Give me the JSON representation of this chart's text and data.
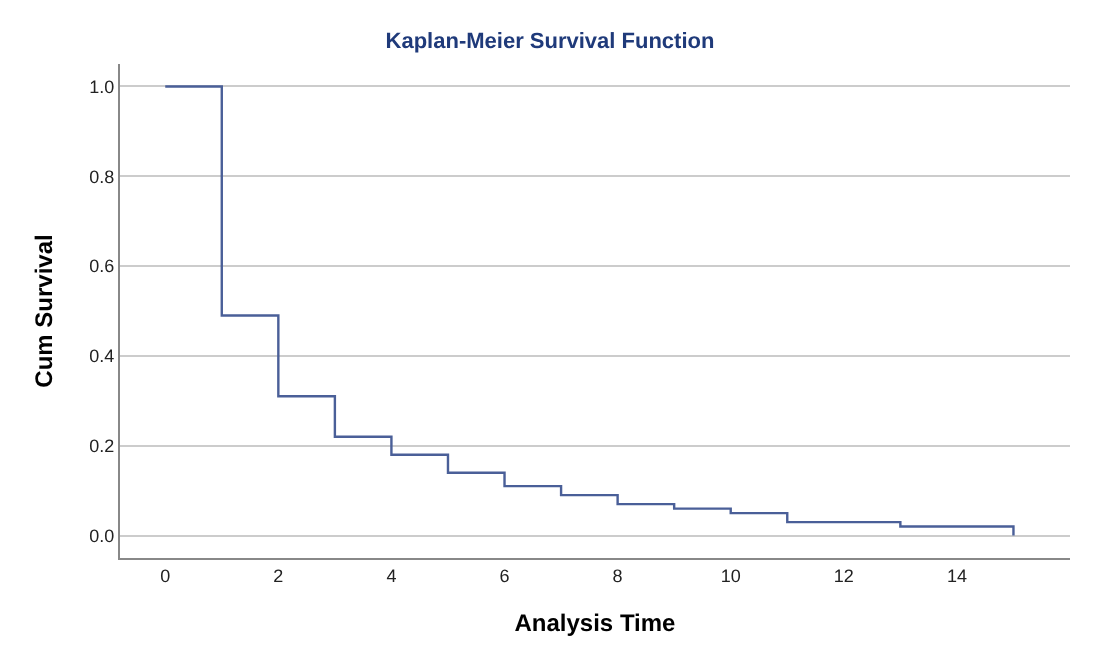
{
  "chart_data": {
    "type": "step",
    "title": "Kaplan-Meier Survival Function",
    "xlabel": "Analysis Time",
    "ylabel": "Cum Survival",
    "x": [
      0,
      1,
      2,
      3,
      4,
      5,
      6,
      7,
      8,
      9,
      10,
      11,
      12,
      13,
      14,
      15
    ],
    "series": [
      {
        "color": "#4a5f98",
        "values": [
          1.0,
          0.49,
          0.31,
          0.22,
          0.18,
          0.14,
          0.11,
          0.09,
          0.07,
          0.06,
          0.05,
          0.03,
          0.03,
          0.02,
          0.02,
          0.0
        ]
      }
    ],
    "xlim": [
      -0.8,
      16
    ],
    "xticks": [
      0,
      2,
      4,
      6,
      8,
      10,
      12,
      14
    ],
    "ylim": [
      -0.05,
      1.05
    ],
    "yticks": [
      {
        "value": 0,
        "label": "0.0"
      },
      {
        "value": 0.2,
        "label": "0.2"
      },
      {
        "value": 0.4,
        "label": "0.4"
      },
      {
        "value": 0.6,
        "label": "0.6"
      },
      {
        "value": 0.8,
        "label": "0.8"
      },
      {
        "value": 1.0,
        "label": "1.0"
      }
    ],
    "grid": "y"
  }
}
